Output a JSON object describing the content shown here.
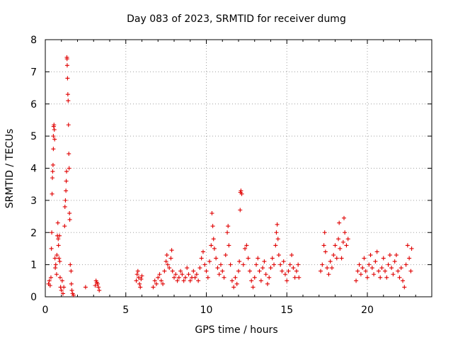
{
  "chart_data": {
    "type": "scatter",
    "title": "Day 083 of 2023, SRMTID for receiver dumg",
    "xlabel": "GPS time / hours",
    "ylabel": "SRMTID / TECUs",
    "xlim": [
      0,
      24
    ],
    "ylim": [
      0,
      8
    ],
    "x_ticks": [
      0,
      5,
      10,
      15,
      20
    ],
    "x_tick_labels": [
      "0",
      "5",
      "10",
      "15",
      "20"
    ],
    "y_ticks": [
      0,
      1,
      2,
      3,
      4,
      5,
      6,
      7,
      8
    ],
    "y_tick_labels": [
      "0",
      "1",
      "2",
      "3",
      "4",
      "5",
      "6",
      "7",
      "8"
    ],
    "grid": true,
    "marker": "+",
    "marker_color": "#e00000",
    "series": [
      {
        "name": "SRMTID",
        "points": [
          [
            0.2,
            0.4
          ],
          [
            0.25,
            0.5
          ],
          [
            0.3,
            0.35
          ],
          [
            0.35,
            0.6
          ],
          [
            0.38,
            1.5
          ],
          [
            0.4,
            2.0
          ],
          [
            0.42,
            3.2
          ],
          [
            0.44,
            3.7
          ],
          [
            0.46,
            3.9
          ],
          [
            0.48,
            4.1
          ],
          [
            0.5,
            4.6
          ],
          [
            0.5,
            5.0
          ],
          [
            0.52,
            5.3
          ],
          [
            0.54,
            5.35
          ],
          [
            0.56,
            5.2
          ],
          [
            0.58,
            4.9
          ],
          [
            0.6,
            1.2
          ],
          [
            0.62,
            0.9
          ],
          [
            0.65,
            1.0
          ],
          [
            0.7,
            0.7
          ],
          [
            0.72,
            1.3
          ],
          [
            0.75,
            1.9
          ],
          [
            0.78,
            2.3
          ],
          [
            0.8,
            1.8
          ],
          [
            0.82,
            1.6
          ],
          [
            0.85,
            1.2
          ],
          [
            0.88,
            1.9
          ],
          [
            0.9,
            1.1
          ],
          [
            0.92,
            0.6
          ],
          [
            0.95,
            0.3
          ],
          [
            1.0,
            0.2
          ],
          [
            1.05,
            0.5
          ],
          [
            1.1,
            0.1
          ],
          [
            1.15,
            0.3
          ],
          [
            1.2,
            2.2
          ],
          [
            1.22,
            2.8
          ],
          [
            1.25,
            3.0
          ],
          [
            1.28,
            3.3
          ],
          [
            1.3,
            3.6
          ],
          [
            1.32,
            3.9
          ],
          [
            1.34,
            7.45
          ],
          [
            1.35,
            7.4
          ],
          [
            1.36,
            7.2
          ],
          [
            1.38,
            6.8
          ],
          [
            1.4,
            6.3
          ],
          [
            1.42,
            6.1
          ],
          [
            1.44,
            5.35
          ],
          [
            1.46,
            4.45
          ],
          [
            1.48,
            4.0
          ],
          [
            1.5,
            2.6
          ],
          [
            1.52,
            2.4
          ],
          [
            1.55,
            1.0
          ],
          [
            1.6,
            0.8
          ],
          [
            1.62,
            0.4
          ],
          [
            1.65,
            0.2
          ],
          [
            1.7,
            0.1
          ],
          [
            1.75,
            0.05
          ],
          [
            2.5,
            0.3
          ],
          [
            3.1,
            0.35
          ],
          [
            3.15,
            0.5
          ],
          [
            3.2,
            0.45
          ],
          [
            3.25,
            0.4
          ],
          [
            3.3,
            0.3
          ],
          [
            3.35,
            0.2
          ],
          [
            5.65,
            0.5
          ],
          [
            5.7,
            0.7
          ],
          [
            5.75,
            0.8
          ],
          [
            5.8,
            0.6
          ],
          [
            5.85,
            0.4
          ],
          [
            5.9,
            0.3
          ],
          [
            5.95,
            0.55
          ],
          [
            6.0,
            0.65
          ],
          [
            6.7,
            0.3
          ],
          [
            6.8,
            0.5
          ],
          [
            6.9,
            0.4
          ],
          [
            7.0,
            0.6
          ],
          [
            7.1,
            0.7
          ],
          [
            7.2,
            0.5
          ],
          [
            7.3,
            0.4
          ],
          [
            7.4,
            0.8
          ],
          [
            7.5,
            1.1
          ],
          [
            7.55,
            1.3
          ],
          [
            7.6,
            1.0
          ],
          [
            7.7,
            0.9
          ],
          [
            7.8,
            1.2
          ],
          [
            7.85,
            1.45
          ],
          [
            7.9,
            0.8
          ],
          [
            8.0,
            0.6
          ],
          [
            8.1,
            0.7
          ],
          [
            8.2,
            0.5
          ],
          [
            8.3,
            0.6
          ],
          [
            8.4,
            0.8
          ],
          [
            8.5,
            0.7
          ],
          [
            8.6,
            0.5
          ],
          [
            8.7,
            0.6
          ],
          [
            8.8,
            0.9
          ],
          [
            8.9,
            0.7
          ],
          [
            9.0,
            0.5
          ],
          [
            9.1,
            0.6
          ],
          [
            9.2,
            0.8
          ],
          [
            9.3,
            0.6
          ],
          [
            9.4,
            0.7
          ],
          [
            9.5,
            0.5
          ],
          [
            9.6,
            0.9
          ],
          [
            9.7,
            1.2
          ],
          [
            9.8,
            1.4
          ],
          [
            9.9,
            1.0
          ],
          [
            10.0,
            0.8
          ],
          [
            10.1,
            0.6
          ],
          [
            10.2,
            1.1
          ],
          [
            10.3,
            1.6
          ],
          [
            10.35,
            2.6
          ],
          [
            10.4,
            2.2
          ],
          [
            10.45,
            1.8
          ],
          [
            10.5,
            1.5
          ],
          [
            10.6,
            1.2
          ],
          [
            10.7,
            0.9
          ],
          [
            10.8,
            0.7
          ],
          [
            10.9,
            1.0
          ],
          [
            11.0,
            0.8
          ],
          [
            11.1,
            0.6
          ],
          [
            11.2,
            1.3
          ],
          [
            11.3,
            2.0
          ],
          [
            11.35,
            2.2
          ],
          [
            11.4,
            1.6
          ],
          [
            11.5,
            1.0
          ],
          [
            11.6,
            0.5
          ],
          [
            11.7,
            0.3
          ],
          [
            11.8,
            0.6
          ],
          [
            11.9,
            0.4
          ],
          [
            12.0,
            0.8
          ],
          [
            12.05,
            1.1
          ],
          [
            12.1,
            2.7
          ],
          [
            12.12,
            3.25
          ],
          [
            12.15,
            3.3
          ],
          [
            12.2,
            3.2
          ],
          [
            12.3,
            1.0
          ],
          [
            12.4,
            1.5
          ],
          [
            12.5,
            1.6
          ],
          [
            12.6,
            1.2
          ],
          [
            12.7,
            0.8
          ],
          [
            12.8,
            0.5
          ],
          [
            12.9,
            0.3
          ],
          [
            13.0,
            0.6
          ],
          [
            13.1,
            1.0
          ],
          [
            13.2,
            1.2
          ],
          [
            13.3,
            0.8
          ],
          [
            13.4,
            0.5
          ],
          [
            13.5,
            0.9
          ],
          [
            13.6,
            1.1
          ],
          [
            13.7,
            0.7
          ],
          [
            13.8,
            0.4
          ],
          [
            13.9,
            0.6
          ],
          [
            14.0,
            0.9
          ],
          [
            14.1,
            1.2
          ],
          [
            14.2,
            1.0
          ],
          [
            14.3,
            1.6
          ],
          [
            14.35,
            2.0
          ],
          [
            14.4,
            2.25
          ],
          [
            14.45,
            1.8
          ],
          [
            14.5,
            1.3
          ],
          [
            14.6,
            1.0
          ],
          [
            14.7,
            0.8
          ],
          [
            14.8,
            1.1
          ],
          [
            14.9,
            0.7
          ],
          [
            15.0,
            0.5
          ],
          [
            15.1,
            0.8
          ],
          [
            15.2,
            1.0
          ],
          [
            15.3,
            1.3
          ],
          [
            15.4,
            0.9
          ],
          [
            15.5,
            0.6
          ],
          [
            15.6,
            0.8
          ],
          [
            15.7,
            1.0
          ],
          [
            15.75,
            0.6
          ],
          [
            17.1,
            0.8
          ],
          [
            17.2,
            1.0
          ],
          [
            17.3,
            1.6
          ],
          [
            17.35,
            2.0
          ],
          [
            17.4,
            1.4
          ],
          [
            17.5,
            0.9
          ],
          [
            17.6,
            0.7
          ],
          [
            17.7,
            1.1
          ],
          [
            17.8,
            0.9
          ],
          [
            17.9,
            1.3
          ],
          [
            18.0,
            1.6
          ],
          [
            18.1,
            1.2
          ],
          [
            18.2,
            1.8
          ],
          [
            18.25,
            2.3
          ],
          [
            18.3,
            1.5
          ],
          [
            18.4,
            1.2
          ],
          [
            18.5,
            1.7
          ],
          [
            18.55,
            2.45
          ],
          [
            18.6,
            2.0
          ],
          [
            18.7,
            1.6
          ],
          [
            18.8,
            1.8
          ],
          [
            19.3,
            0.5
          ],
          [
            19.4,
            0.8
          ],
          [
            19.5,
            1.0
          ],
          [
            19.6,
            0.7
          ],
          [
            19.7,
            0.9
          ],
          [
            19.8,
            1.2
          ],
          [
            19.9,
            0.8
          ],
          [
            20.0,
            0.6
          ],
          [
            20.1,
            1.0
          ],
          [
            20.2,
            1.3
          ],
          [
            20.3,
            0.9
          ],
          [
            20.4,
            0.7
          ],
          [
            20.5,
            1.1
          ],
          [
            20.6,
            1.4
          ],
          [
            20.7,
            0.8
          ],
          [
            20.8,
            0.6
          ],
          [
            20.9,
            0.9
          ],
          [
            21.0,
            1.2
          ],
          [
            21.1,
            0.8
          ],
          [
            21.2,
            0.6
          ],
          [
            21.3,
            1.0
          ],
          [
            21.4,
            1.3
          ],
          [
            21.5,
            0.9
          ],
          [
            21.6,
            0.7
          ],
          [
            21.7,
            1.1
          ],
          [
            21.8,
            1.3
          ],
          [
            21.9,
            0.8
          ],
          [
            22.0,
            0.6
          ],
          [
            22.1,
            0.9
          ],
          [
            22.2,
            0.5
          ],
          [
            22.3,
            0.3
          ],
          [
            22.4,
            1.0
          ],
          [
            22.5,
            1.6
          ],
          [
            22.6,
            1.2
          ],
          [
            22.7,
            0.8
          ],
          [
            22.75,
            1.5
          ]
        ]
      }
    ]
  }
}
